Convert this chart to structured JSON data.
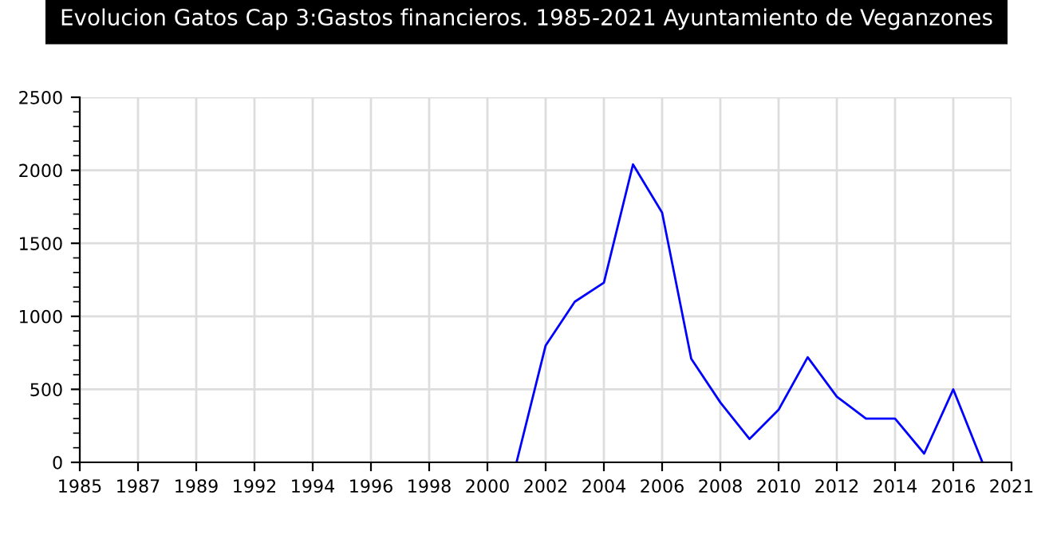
{
  "chart_data": {
    "type": "line",
    "title": "Evolucion Gatos Cap 3:Gastos financieros. 1985-2021 Ayuntamiento de Veganzones",
    "categories": [
      "1985",
      null,
      "1987",
      null,
      "1989",
      null,
      "1992",
      null,
      "1994",
      null,
      "1996",
      null,
      "1998",
      null,
      "2000",
      null,
      "2002",
      null,
      "2004",
      null,
      "2006",
      null,
      "2008",
      null,
      "2010",
      null,
      "2012",
      null,
      "2014",
      null,
      "2016",
      null,
      "2021"
    ],
    "series": [
      {
        "color": "#0000ff",
        "values": [
          null,
          null,
          null,
          null,
          null,
          null,
          null,
          null,
          null,
          null,
          null,
          null,
          null,
          null,
          null,
          0,
          800,
          1100,
          1230,
          2040,
          1710,
          710,
          410,
          160,
          360,
          720,
          450,
          300,
          300,
          60,
          500,
          0,
          null
        ]
      }
    ],
    "ylim": [
      0,
      2500
    ],
    "yticks": [
      0,
      500,
      1000,
      1500,
      2000,
      2500
    ],
    "grid": true,
    "marker": "none",
    "line_style": "solid"
  }
}
